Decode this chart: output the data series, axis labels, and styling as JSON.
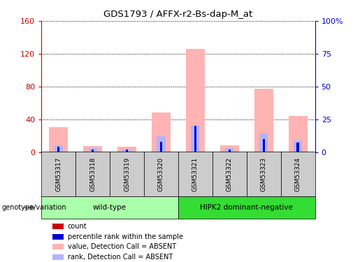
{
  "title": "GDS1793 / AFFX-r2-Bs-dap-M_at",
  "samples": [
    "GSM53317",
    "GSM53318",
    "GSM53319",
    "GSM53320",
    "GSM53321",
    "GSM53322",
    "GSM53323",
    "GSM53324"
  ],
  "value_absent": [
    30,
    7,
    6,
    48,
    126,
    8,
    77,
    44
  ],
  "rank_absent_pct": [
    5,
    3,
    2,
    12,
    20,
    3,
    14,
    9
  ],
  "count_red": [
    3,
    1,
    1,
    2,
    3,
    1,
    2,
    1
  ],
  "percentile_blue_pct": [
    4,
    2,
    2,
    8,
    20,
    2,
    10,
    7
  ],
  "left_ylim": [
    0,
    160
  ],
  "left_yticks": [
    0,
    40,
    80,
    120,
    160
  ],
  "left_ylabel_color": "#cc0000",
  "right_ylim": [
    0,
    100
  ],
  "right_yticks": [
    0,
    25,
    50,
    75,
    100
  ],
  "right_ylabel_color": "#0000cc",
  "right_yticklabels": [
    "0",
    "25",
    "50",
    "75",
    "100%"
  ],
  "groups": [
    {
      "label": "wild-type",
      "start": 0,
      "end": 4,
      "color": "#aaffaa"
    },
    {
      "label": "HIPK2 dominant-negative",
      "start": 4,
      "end": 8,
      "color": "#33dd33"
    }
  ],
  "group_label_prefix": "genotype/variation",
  "color_value_absent": "#ffb3b3",
  "color_rank_absent": "#b3b3ff",
  "color_count": "#cc0000",
  "color_percentile": "#0000cc",
  "background_color": "#ffffff",
  "grid_color": "#000000",
  "sample_bg_color": "#cccccc",
  "legend_items": [
    {
      "color": "#cc0000",
      "label": "count"
    },
    {
      "color": "#0000cc",
      "label": "percentile rank within the sample"
    },
    {
      "color": "#ffb3b3",
      "label": "value, Detection Call = ABSENT"
    },
    {
      "color": "#b3b3ff",
      "label": "rank, Detection Call = ABSENT"
    }
  ]
}
